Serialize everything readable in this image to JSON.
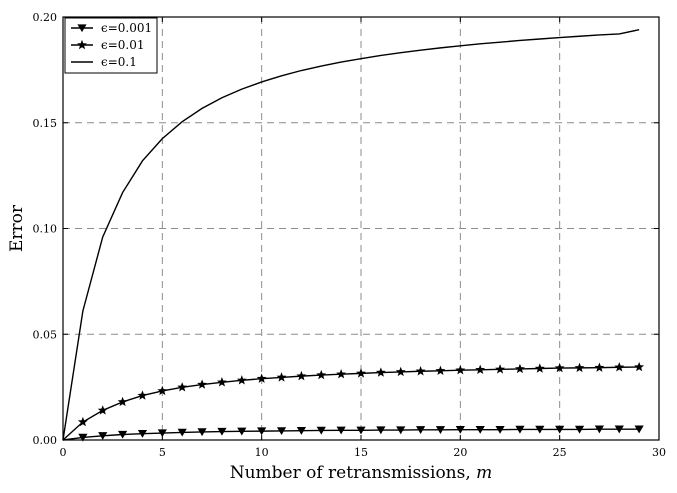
{
  "chart_data": {
    "type": "line",
    "xlabel": "Number of retransmissions, ",
    "xlabel_var": "m",
    "ylabel": "Error",
    "xlim": [
      0,
      30
    ],
    "ylim": [
      0,
      0.2
    ],
    "xticks": [
      "0",
      "5",
      "10",
      "15",
      "20",
      "25",
      "30"
    ],
    "yticks": [
      "0.00",
      "0.05",
      "0.10",
      "0.15",
      "0.20"
    ],
    "grid": true,
    "legend_position": "top-left",
    "series": [
      {
        "name": "ϵ=0.001",
        "marker": "triangle-down",
        "x": [
          0,
          1,
          2,
          3,
          4,
          5,
          6,
          7,
          8,
          9,
          10,
          11,
          12,
          13,
          14,
          15,
          16,
          17,
          18,
          19,
          20,
          21,
          22,
          23,
          24,
          25,
          26,
          27,
          28,
          29
        ],
        "values": [
          0,
          0.0012,
          0.002,
          0.0026,
          0.003,
          0.0033,
          0.0036,
          0.0038,
          0.004,
          0.0041,
          0.0042,
          0.0043,
          0.0044,
          0.0045,
          0.0046,
          0.0046,
          0.0047,
          0.0047,
          0.0048,
          0.0048,
          0.0049,
          0.0049,
          0.0049,
          0.005,
          0.005,
          0.005,
          0.005,
          0.0051,
          0.0051,
          0.0051
        ]
      },
      {
        "name": "ϵ=0.01",
        "marker": "star",
        "x": [
          0,
          1,
          2,
          3,
          4,
          5,
          6,
          7,
          8,
          9,
          10,
          11,
          12,
          13,
          14,
          15,
          16,
          17,
          18,
          19,
          20,
          21,
          22,
          23,
          24,
          25,
          26,
          27,
          28,
          29
        ],
        "values": [
          0,
          0.0085,
          0.014,
          0.018,
          0.021,
          0.0232,
          0.0249,
          0.0262,
          0.0273,
          0.0282,
          0.029,
          0.0296,
          0.0302,
          0.0307,
          0.0311,
          0.0315,
          0.0319,
          0.0322,
          0.0325,
          0.0327,
          0.033,
          0.0332,
          0.0334,
          0.0336,
          0.0338,
          0.034,
          0.0341,
          0.0342,
          0.0344,
          0.0345
        ]
      },
      {
        "name": "ϵ=0.1",
        "marker": "none",
        "x": [
          0,
          1,
          2,
          3,
          4,
          5,
          6,
          7,
          8,
          9,
          10,
          11,
          12,
          13,
          14,
          15,
          16,
          17,
          18,
          19,
          20,
          21,
          22,
          23,
          24,
          25,
          26,
          27,
          28,
          29
        ],
        "values": [
          0,
          0.061,
          0.096,
          0.117,
          0.132,
          0.1425,
          0.1505,
          0.1568,
          0.1618,
          0.1659,
          0.1693,
          0.1722,
          0.1747,
          0.1768,
          0.1787,
          0.1803,
          0.1818,
          0.1831,
          0.1843,
          0.1854,
          0.1864,
          0.1873,
          0.1881,
          0.1889,
          0.1896,
          0.1903,
          0.1909,
          0.1915,
          0.192,
          0.194
        ]
      }
    ]
  }
}
